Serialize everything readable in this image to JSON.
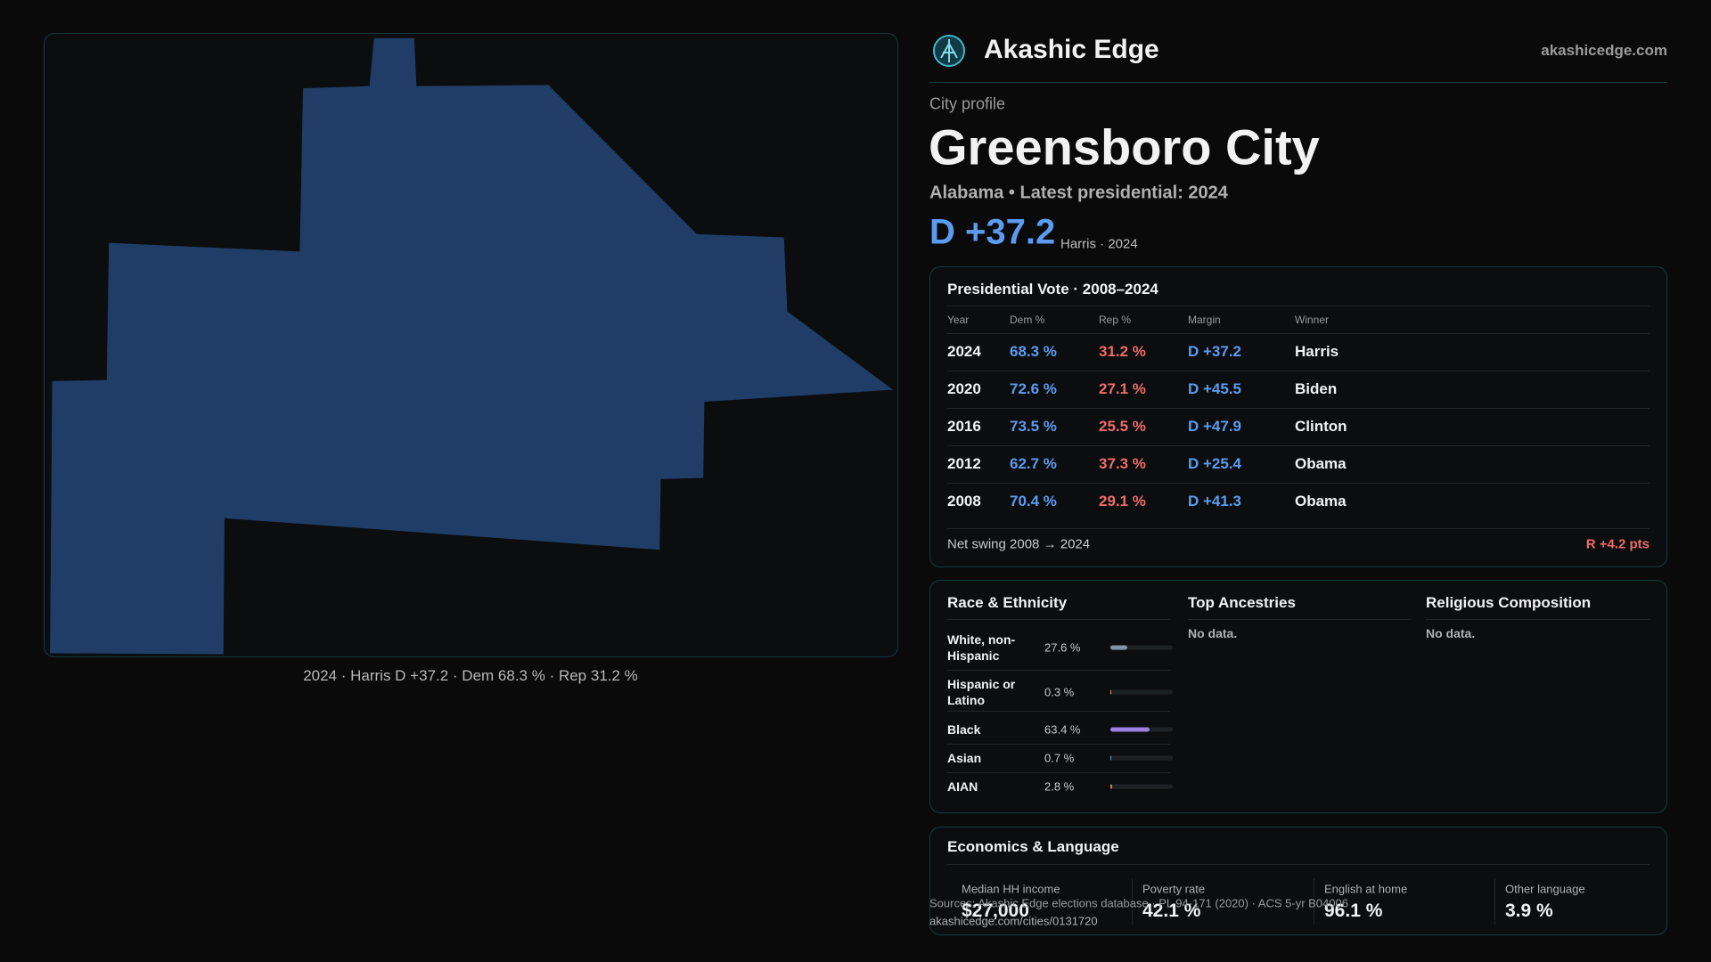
{
  "header": {
    "brand": "Akashic Edge",
    "site": "akashicedge.com"
  },
  "map": {
    "caption": "2024 · Harris D +37.2 · Dem 68.3 % · Rep 31.2 %"
  },
  "profile": {
    "kicker": "City profile",
    "title": "Greensboro City",
    "subtitle": "Alabama • Latest presidential: 2024",
    "margin": "D +37.2",
    "margin_note": "Harris · 2024"
  },
  "vote": {
    "title": "Presidential Vote · 2008–2024",
    "columns": [
      "Year",
      "Dem %",
      "Rep %",
      "Margin",
      "Winner"
    ],
    "rows": [
      [
        "2024",
        "68.3 %",
        "31.2 %",
        "D +37.2",
        "Harris"
      ],
      [
        "2020",
        "72.6 %",
        "27.1 %",
        "D +45.5",
        "Biden"
      ],
      [
        "2016",
        "73.5 %",
        "25.5 %",
        "D +47.9",
        "Clinton"
      ],
      [
        "2012",
        "62.7 %",
        "37.3 %",
        "D +25.4",
        "Obama"
      ],
      [
        "2008",
        "70.4 %",
        "29.1 %",
        "D +41.3",
        "Obama"
      ]
    ],
    "swing_label": "Net swing 2008 → 2024",
    "swing_value": "R +4.2 pts"
  },
  "race": {
    "title": "Race & Ethnicity",
    "rows": [
      {
        "label": "White, non-Hispanic",
        "value": 27.6,
        "value_label": "27.6 %",
        "color": "#8792a4"
      },
      {
        "label": "Hispanic or Latino",
        "value": 0.3,
        "value_label": "0.3 %",
        "color": "#c9a24a"
      },
      {
        "label": "Black",
        "value": 63.4,
        "value_label": "63.4 %",
        "color": "#9a80e0"
      },
      {
        "label": "Asian",
        "value": 0.7,
        "value_label": "0.7 %",
        "color": "#4fb0c6"
      },
      {
        "label": "AIAN",
        "value": 2.8,
        "value_label": "2.8 %",
        "color": "#e07a2a"
      }
    ]
  },
  "ancestries": {
    "title": "Top Ancestries",
    "empty": "No data."
  },
  "religion": {
    "title": "Religious Composition",
    "empty": "No data."
  },
  "economics": {
    "title": "Economics & Language",
    "metrics": [
      {
        "label": "Median HH income",
        "value": "$27,000"
      },
      {
        "label": "Poverty rate",
        "value": "42.1 %"
      },
      {
        "label": "English at home",
        "value": "96.1 %"
      },
      {
        "label": "Other language",
        "value": "3.9 %"
      }
    ]
  },
  "footer": {
    "source": "Sources: Akashic Edge elections database · PL 94-171 (2020) · ACS 5-yr B04006",
    "url": "akashicedge.com/cities/0131720"
  }
}
